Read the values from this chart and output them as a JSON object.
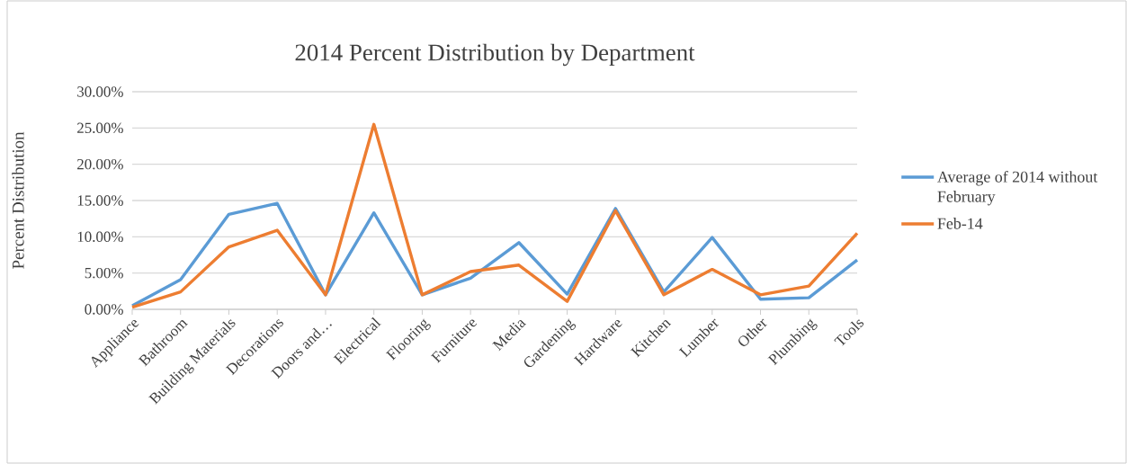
{
  "chart_data": {
    "type": "line",
    "title": "2014 Percent Distribution by Department",
    "ylabel": "Percent Distribution",
    "categories": [
      "Appliance",
      "Bathroom",
      "Building Materials",
      "Decorations",
      "Doors and…",
      "Electrical",
      "Flooring",
      "Furniture",
      "Media",
      "Gardening",
      "Hardware",
      "Kitchen",
      "Lumber",
      "Other",
      "Plumbing",
      "Tools"
    ],
    "series": [
      {
        "name": "Average of 2014 without February",
        "color": "#5b9bd5",
        "values": [
          0.5,
          4.1,
          13.1,
          14.6,
          2.0,
          13.3,
          2.0,
          4.3,
          9.2,
          2.1,
          13.9,
          2.4,
          9.9,
          1.4,
          1.6,
          6.8
        ]
      },
      {
        "name": "Feb-14",
        "color": "#ed7d31",
        "values": [
          0.3,
          2.4,
          8.6,
          10.9,
          2.0,
          25.5,
          2.0,
          5.2,
          6.1,
          1.1,
          13.6,
          2.0,
          5.5,
          2.0,
          3.2,
          10.5
        ]
      }
    ],
    "ylim": [
      0,
      30
    ],
    "yticks": [
      {
        "value": 0,
        "label": "0.00%"
      },
      {
        "value": 5,
        "label": "5.00%"
      },
      {
        "value": 10,
        "label": "10.00%"
      },
      {
        "value": 15,
        "label": "15.00%"
      },
      {
        "value": 20,
        "label": "20.00%"
      },
      {
        "value": 25,
        "label": "25.00%"
      },
      {
        "value": 30,
        "label": "30.00%"
      }
    ],
    "grid": "y",
    "legend": "right",
    "marker": "none"
  }
}
